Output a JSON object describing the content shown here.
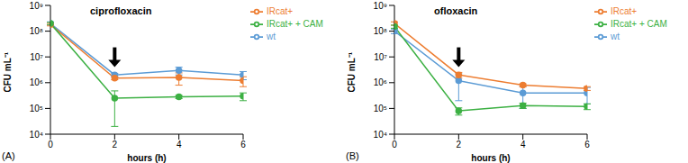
{
  "chart_data": [
    {
      "type": "line",
      "title": "ciprofloxacin",
      "panel_label": "(A)",
      "x_label": "hours (h)",
      "y_label": "CFU mL⁻¹",
      "x": [
        0,
        2,
        4,
        6
      ],
      "xlim": [
        0,
        6
      ],
      "xticks": [
        0,
        2,
        4,
        6
      ],
      "ylim": [
        10000,
        1000000000
      ],
      "log": "y",
      "yticks": [
        {
          "value": 10000,
          "label": "10⁴"
        },
        {
          "value": 100000,
          "label": "10⁵"
        },
        {
          "value": 1000000,
          "label": "10⁶"
        },
        {
          "value": 10000000,
          "label": "10⁷"
        },
        {
          "value": 100000000,
          "label": "10⁸"
        },
        {
          "value": 1000000000,
          "label": "10⁹"
        }
      ],
      "legend": "right",
      "marker": "circle",
      "arrow": {
        "x": 2,
        "y": 4000000
      },
      "series": [
        {
          "name": "wt",
          "color": "#5b9bd5",
          "values": [
            200000000,
            2000000,
            3000000,
            2000000
          ],
          "errors": [
            30000000,
            300000,
            1000000,
            700000
          ]
        },
        {
          "name": "IRcat+",
          "color": "#ed7d31",
          "values": [
            180000000,
            1500000,
            1600000,
            1200000
          ],
          "errors": [
            20000000,
            200000,
            800000,
            500000
          ]
        },
        {
          "name": "IRcat+ + CAM",
          "color": "#3cb043",
          "values": [
            200000000,
            250000,
            280000,
            300000
          ],
          "errors": [
            20000000,
            230000,
            40000,
            100000
          ]
        }
      ]
    },
    {
      "type": "line",
      "title": "ofloxacin",
      "panel_label": "(B)",
      "x_label": "hours (h)",
      "y_label": "CFU mL⁻¹",
      "x": [
        0,
        2,
        4,
        6
      ],
      "xlim": [
        0,
        6
      ],
      "xticks": [
        0,
        2,
        4,
        6
      ],
      "ylim": [
        10000,
        1000000000
      ],
      "log": "y",
      "yticks": [
        {
          "value": 10000,
          "label": "10⁴"
        },
        {
          "value": 100000,
          "label": "10⁵"
        },
        {
          "value": 1000000,
          "label": "10⁶"
        },
        {
          "value": 10000000,
          "label": "10⁷"
        },
        {
          "value": 100000000,
          "label": "10⁸"
        },
        {
          "value": 1000000000,
          "label": "10⁹"
        }
      ],
      "legend": "right",
      "marker": "circle",
      "arrow": {
        "x": 2,
        "y": 4000000
      },
      "series": [
        {
          "name": "wt",
          "color": "#5b9bd5",
          "values": [
            100000000,
            1200000,
            400000,
            400000
          ],
          "errors": [
            20000000,
            1000000,
            300000,
            250000
          ]
        },
        {
          "name": "IRcat+",
          "color": "#ed7d31",
          "values": [
            200000000,
            2000000,
            800000,
            600000
          ],
          "errors": [
            30000000,
            500000,
            100000,
            100000
          ]
        },
        {
          "name": "IRcat+ + CAM",
          "color": "#3cb043",
          "values": [
            150000000,
            80000,
            130000,
            120000
          ],
          "errors": [
            20000000,
            25000,
            30000,
            30000
          ]
        }
      ]
    }
  ]
}
